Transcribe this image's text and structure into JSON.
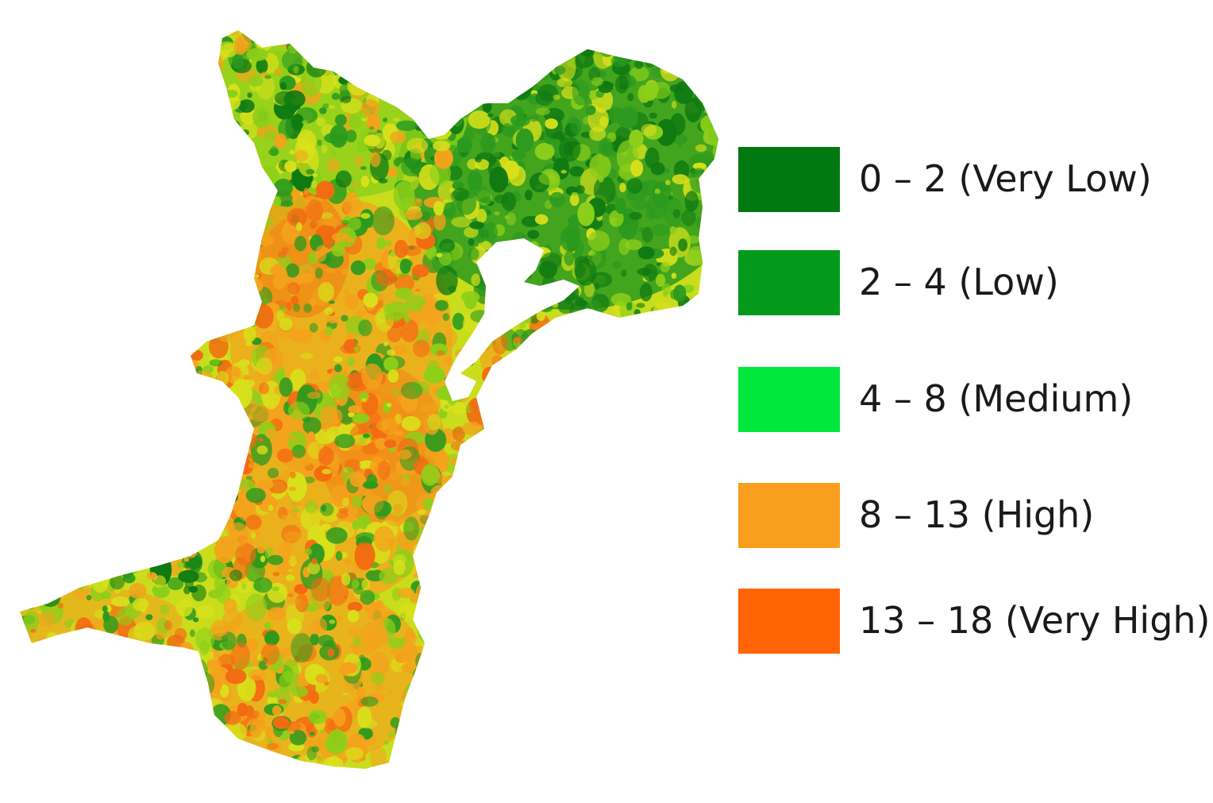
{
  "legend": {
    "items": [
      {
        "label": "0 – 2 (Very Low)",
        "color": "#007a10"
      },
      {
        "label": "2 – 4 (Low)",
        "color": "#039a1c"
      },
      {
        "label": "4 – 8 (Medium)",
        "color": "#00e83c"
      },
      {
        "label": "8 – 13 (High)",
        "color": "#f99e1e"
      },
      {
        "label": "13 – 18 (Very High)",
        "color": "#ff6505"
      }
    ]
  },
  "map": {
    "palette": {
      "very_low": "#0f7a12",
      "low": "#2b9a1e",
      "medium": "#8ccf1a",
      "yellow": "#d8e11b",
      "high": "#f4a21c",
      "very_high": "#f36a12"
    }
  }
}
